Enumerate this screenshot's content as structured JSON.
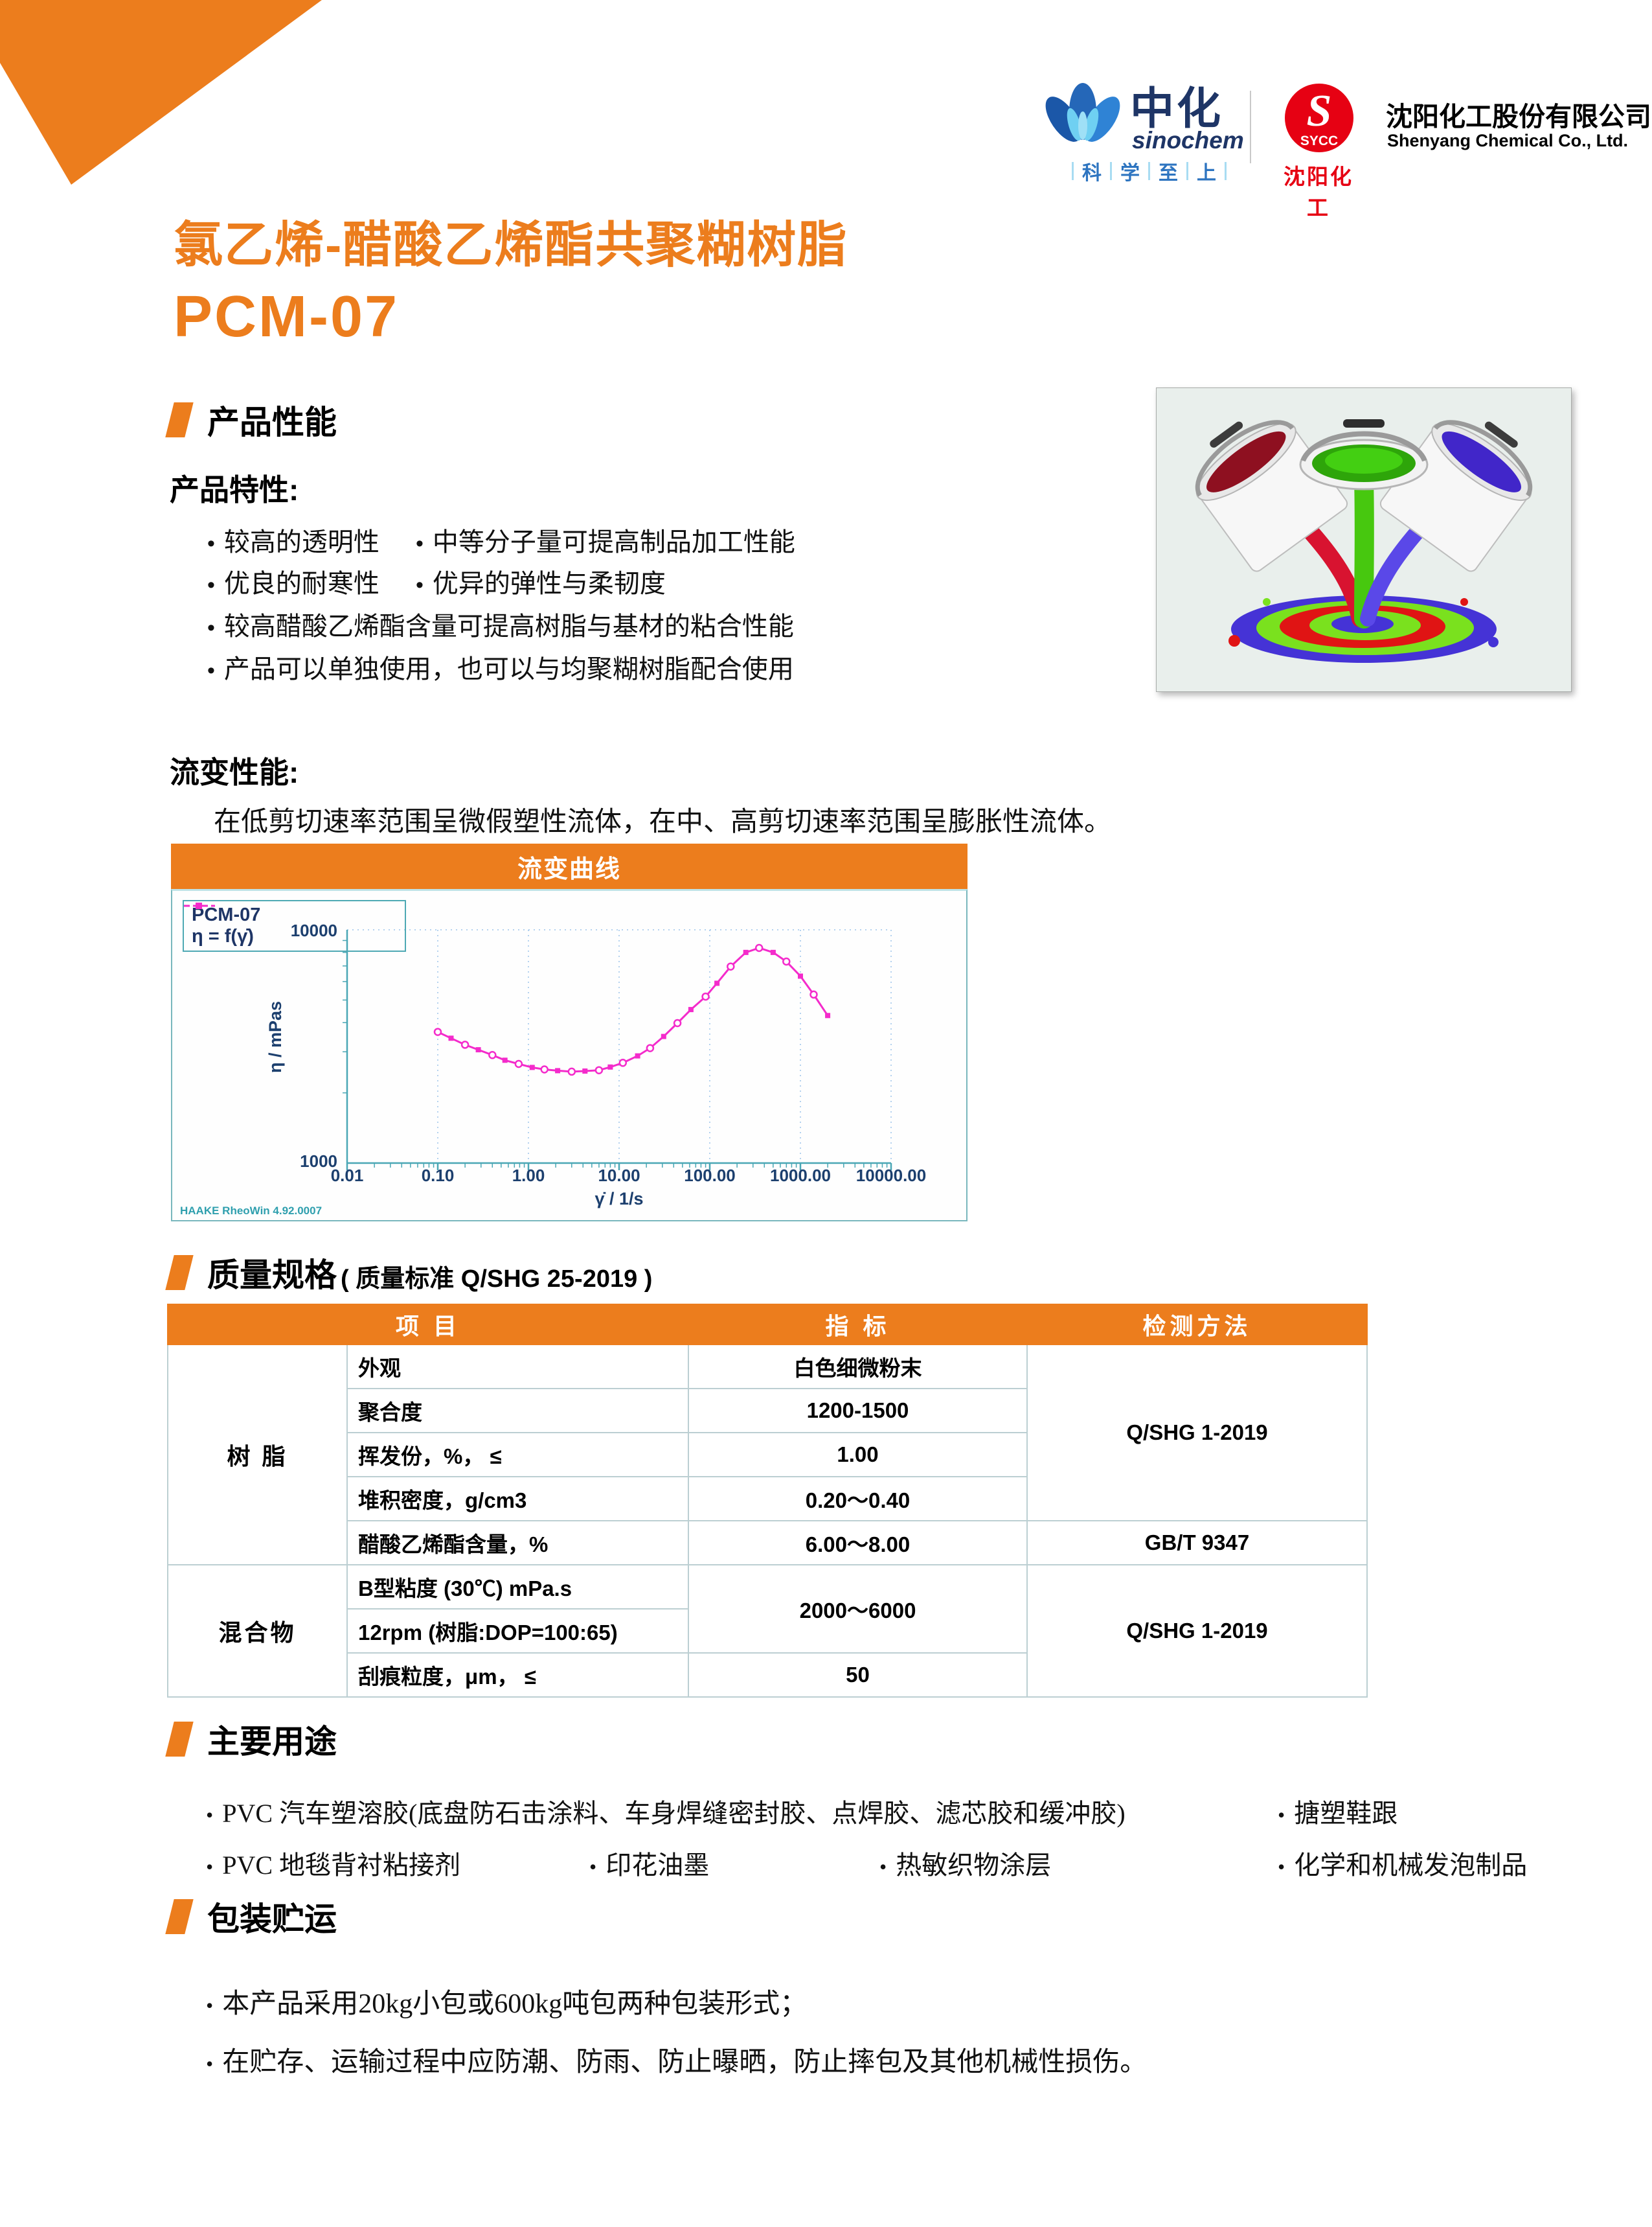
{
  "header": {
    "sinochem": {
      "name_cn": "中化",
      "name_en": "sinochem",
      "tagline": [
        "科",
        "学",
        "至",
        "上"
      ]
    },
    "sycc": {
      "abbr": "SYCC",
      "monogram": "S",
      "name_cn": "沈阳化工"
    },
    "company": {
      "cn": "沈阳化工股份有限公司",
      "en": "Shenyang Chemical Co., Ltd."
    }
  },
  "title": {
    "line1": "氯乙烯-醋酸乙烯酯共聚糊树脂",
    "line2": "PCM-07"
  },
  "sections": {
    "performance": "产品性能",
    "quality": "质量规格",
    "quality_sub": "( 质量标准 Q/SHG 25-2019 )",
    "uses": "主要用途",
    "packaging": "包装贮运"
  },
  "features": {
    "heading": "产品特性:",
    "b1a": "较高的透明性",
    "b1b": "中等分子量可提高制品加工性能",
    "b2a": "优良的耐寒性",
    "b2b": "优异的弹性与柔韧度",
    "b3": "较高醋酸乙烯酯含量可提高树脂与基材的粘合性能",
    "b4": "产品可以单独使用，也可以与均聚糊树脂配合使用"
  },
  "rheology": {
    "heading": "流变性能:",
    "paragraph": "在低剪切速率范围呈微假塑性流体，在中、高剪切速率范围呈膨胀性流体。"
  },
  "chart_data": {
    "type": "line",
    "title": "流变曲线",
    "legend": {
      "series_label": "PCM-07",
      "equation": "η = f(γ̇)"
    },
    "xlabel": "γ̇ / 1/s",
    "ylabel": "η / mPas",
    "xscale": "log",
    "yscale": "log",
    "xlim": [
      0.01,
      10000
    ],
    "ylim": [
      1000,
      10000
    ],
    "xticks": [
      "0.01",
      "0.10",
      "1.00",
      "10.00",
      "100.00",
      "1000.00",
      "10000.00"
    ],
    "yticks": [
      "1000",
      "10000"
    ],
    "grid": "vertical dotted at decades, top dotted",
    "legend_position": "top-left",
    "watermark": "HAAKE RheoWin 4.92.0007",
    "series": [
      {
        "name": "PCM-07",
        "color": "#f42bcb",
        "x": [
          0.1,
          0.14,
          0.2,
          0.28,
          0.4,
          0.55,
          0.78,
          1.1,
          1.5,
          2.1,
          3.0,
          4.2,
          6.0,
          8.0,
          11,
          16,
          22,
          31,
          44,
          62,
          90,
          120,
          170,
          250,
          350,
          500,
          700,
          1000,
          1400,
          2000
        ],
        "y": [
          3650,
          3430,
          3215,
          3060,
          2905,
          2760,
          2660,
          2570,
          2520,
          2490,
          2465,
          2480,
          2500,
          2580,
          2690,
          2880,
          3110,
          3490,
          3980,
          4550,
          5170,
          5900,
          6960,
          8000,
          8360,
          8000,
          7310,
          6330,
          5280,
          4290
        ]
      }
    ]
  },
  "table": {
    "h1": "项  目",
    "h2": "指  标",
    "h3": "检测方法",
    "grp1": "树  脂",
    "grp2": "混合物",
    "r1": {
      "item": "外观",
      "value": "白色细微粉末"
    },
    "r2": {
      "item": "聚合度",
      "value": "1200-1500"
    },
    "r3": {
      "item": "挥发份，%， ≤",
      "value": "1.00"
    },
    "r4": {
      "item": "堆积密度，g/cm3",
      "value": "0.20～0.40"
    },
    "r5": {
      "item": "醋酸乙烯酯含量，%",
      "value": "6.00～8.00",
      "method": "GB/T 9347"
    },
    "r6": {
      "item": "B型粘度 (30℃) mPa.s",
      "value": "2000～6000"
    },
    "r7": {
      "item": "12rpm (树脂:DOP=100:65)"
    },
    "r8": {
      "item": "刮痕粒度，μm， ≤",
      "value": "50"
    },
    "method_resin": "Q/SHG 1-2019",
    "method_mix": "Q/SHG 1-2019"
  },
  "uses": {
    "r1a": "PVC 汽车塑溶胶(底盘防石击涂料、车身焊缝密封胶、点焊胶、滤芯胶和缓冲胶)",
    "r1b": "搪塑鞋跟",
    "r2a": "PVC 地毯背衬粘接剂",
    "r2b": "印花油墨",
    "r2c": "热敏织物涂层",
    "r2d": "化学和机械发泡制品"
  },
  "packaging": {
    "b1": "本产品采用20kg小包或600kg吨包两种包装形式；",
    "b2": "在贮存、运输过程中应防潮、防雨、防止曝晒，防止摔包及其他机械性损伤。"
  }
}
